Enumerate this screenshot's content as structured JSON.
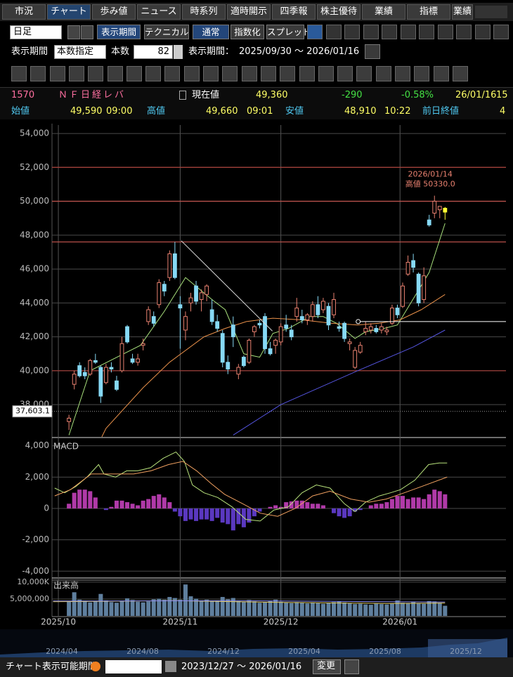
{
  "tabs": [
    "市況",
    "チャート",
    "歩み値",
    "ニュース",
    "時系列",
    "適時開示",
    "四季報",
    "株主優待",
    "業績",
    "指標",
    "業績"
  ],
  "toolbar": {
    "period_select": "日足",
    "buttons": [
      "表示期間",
      "テクニカル",
      "通常",
      "指数化",
      "スプレッド"
    ]
  },
  "range_bar": {
    "label": "表示期間",
    "mode": "本数指定",
    "count_label": "本数",
    "count": "82",
    "period_label": "表示期間：",
    "period": "2025/09/30 ～ 2026/01/16"
  },
  "quote": {
    "code": "1570",
    "name": "ＮＦ日経レバ",
    "current_label": "現在値",
    "current": "49,360",
    "change": "-290",
    "change_pct": "-0.58%",
    "date": "26/01/16",
    "time": "15",
    "open_label": "始値",
    "open": "49,590",
    "open_time": "09:00",
    "high_label": "高値",
    "high": "49,660",
    "high_time": "09:01",
    "low_label": "安値",
    "low": "48,910",
    "low_time": "10:22",
    "prev_label": "前日終値",
    "prev": "4"
  },
  "chart_data": [
    {
      "type": "candlestick",
      "xlim": [
        -3.2,
        82.5
      ],
      "xticks": [
        {
          "value": -2,
          "label": "2025/10"
        },
        {
          "value": 21,
          "label": "2025/11"
        },
        {
          "value": 40,
          "label": "2025/12"
        },
        {
          "value": 62.5,
          "label": "2026/01"
        }
      ],
      "ylim": [
        36100,
        54500
      ],
      "yticks": [
        {
          "value": 38000,
          "label": "38,000"
        },
        {
          "value": 40000,
          "label": "40,000"
        },
        {
          "value": 42000,
          "label": "42,000"
        },
        {
          "value": 44000,
          "label": "44,000"
        },
        {
          "value": 46000,
          "label": "46,000"
        },
        {
          "value": 48000,
          "label": "48,000"
        },
        {
          "value": 50000,
          "label": "50,000"
        },
        {
          "value": 52000,
          "label": "52,000"
        },
        {
          "value": 54000,
          "label": "54,000"
        }
      ],
      "grid": true,
      "open": [
        37000,
        39200,
        40300,
        39900,
        39800,
        40600,
        40200,
        39300,
        40200,
        39400,
        40000,
        42600,
        40700,
        40500,
        41500,
        42900,
        43200,
        43900,
        45100,
        45500,
        46900,
        43900,
        42400,
        44000,
        45000,
        44200,
        44500,
        43600,
        42900,
        42200,
        40500,
        42700,
        39800,
        40800,
        40500,
        42300,
        42800,
        43200,
        41300,
        41500,
        41700,
        42700,
        42400,
        43200,
        43200,
        43000,
        43200,
        43900,
        43600,
        43800,
        43300,
        42600,
        42800,
        41600,
        40200,
        41100,
        42300,
        42400,
        42500,
        42400,
        42300,
        42800,
        43700,
        43800,
        45700,
        46500,
        45700,
        44200,
        48900,
        49300,
        49500,
        49590
      ],
      "high": [
        37400,
        40000,
        40500,
        40200,
        40700,
        41000,
        40300,
        40400,
        40500,
        39700,
        42000,
        42700,
        41000,
        41000,
        41900,
        43800,
        43500,
        45400,
        45300,
        47100,
        47600,
        44400,
        43500,
        44600,
        45300,
        44800,
        45100,
        44200,
        43300,
        42400,
        40900,
        43200,
        40400,
        40900,
        41900,
        42700,
        43000,
        43400,
        41700,
        41900,
        42800,
        43300,
        42700,
        44300,
        43600,
        43400,
        44100,
        44400,
        44300,
        44000,
        44600,
        42900,
        42900,
        41900,
        41400,
        41700,
        42900,
        42800,
        42700,
        42800,
        42600,
        43900,
        43900,
        45200,
        46800,
        46900,
        45800,
        46100,
        49200,
        50330,
        49700,
        49660
      ],
      "low": [
        36500,
        38900,
        39600,
        39500,
        39700,
        40400,
        38100,
        39200,
        39900,
        38800,
        39900,
        41600,
        40400,
        40300,
        41200,
        42700,
        42600,
        43700,
        44400,
        45300,
        45400,
        41300,
        41800,
        43500,
        43900,
        43500,
        44100,
        42700,
        42300,
        40200,
        39800,
        41400,
        39500,
        40200,
        40400,
        42000,
        42500,
        41000,
        40900,
        41000,
        41500,
        42300,
        41800,
        42900,
        42800,
        42700,
        42900,
        43100,
        43400,
        42400,
        43100,
        42300,
        41700,
        41200,
        40100,
        41000,
        42100,
        42200,
        42200,
        42200,
        42100,
        42700,
        43100,
        43700,
        45600,
        45800,
        43800,
        44000,
        48500,
        49000,
        49000,
        48910
      ],
      "close": [
        37200,
        39800,
        39700,
        39700,
        40600,
        40500,
        38500,
        40200,
        40100,
        38900,
        41600,
        41700,
        40500,
        40700,
        41600,
        43600,
        42800,
        45200,
        44700,
        46900,
        45500,
        43700,
        43200,
        44300,
        44100,
        44600,
        45000,
        42900,
        42500,
        40500,
        40100,
        42000,
        40200,
        40300,
        41800,
        42600,
        42700,
        41300,
        41000,
        41800,
        42600,
        42500,
        42000,
        43700,
        43000,
        43300,
        43900,
        43300,
        44100,
        42700,
        44200,
        42500,
        41900,
        41700,
        41200,
        41500,
        42500,
        42600,
        42300,
        42600,
        42400,
        43700,
        43300,
        45000,
        46400,
        46100,
        44000,
        45600,
        48600,
        50000,
        49700,
        49360
      ],
      "up_color": "#e8806f",
      "down_color": "#86d9f5",
      "current_color": "#ffff33",
      "lines": [
        {
          "color": "#a8e07c",
          "x": [
            0,
            4,
            13.5,
            18,
            22,
            27,
            29.5,
            33,
            36,
            38.5,
            41.5,
            45.5,
            48,
            50.5,
            54,
            56,
            59.5,
            62,
            65.5,
            68,
            71
          ],
          "values": [
            36200,
            40000,
            41500,
            43500,
            45500,
            44200,
            43600,
            41000,
            40800,
            42200,
            42500,
            43200,
            43200,
            42800,
            41900,
            42300,
            42500,
            42700,
            44500,
            45800,
            48700
          ]
        },
        {
          "color": "#e8904a",
          "x": [
            6.2,
            7,
            14,
            19,
            25.5,
            29.5,
            33.5,
            38.5,
            44,
            49.5,
            54.5,
            58.5,
            62.5,
            66.5,
            71
          ],
          "values": [
            36100,
            36600,
            39000,
            40500,
            42000,
            42500,
            42900,
            43100,
            43000,
            42800,
            42700,
            42800,
            43000,
            43600,
            44500
          ]
        },
        {
          "color": "#5555e0",
          "x": [
            31,
            40,
            54.5,
            65,
            71
          ],
          "values": [
            36200,
            38000,
            40000,
            41400,
            42400
          ]
        }
      ],
      "reference_lines": [
        {
          "value": 52000,
          "color": "#a0403a"
        },
        {
          "value": 50000,
          "color": "#b8504a"
        },
        {
          "value": 47600,
          "color": "#b8504a"
        },
        {
          "value": 40000,
          "color": "#a0403a"
        }
      ],
      "trendlines": [
        {
          "color": "#dddddd",
          "x": [
            21.2,
            38.4
          ],
          "values": [
            47670,
            42340
          ]
        },
        {
          "color": "#ffffff",
          "x": [
            54.6,
            82.5
          ],
          "values": [
            42900,
            42900
          ]
        }
      ],
      "price_line": {
        "value": 37603.1,
        "label": "37,603.1"
      },
      "annotation": {
        "date": "2026/01/14",
        "text": "高値 50330.0",
        "color": "#e8806f"
      }
    },
    {
      "type": "macd",
      "title": "MACD",
      "ylim": [
        -4300,
        4300
      ],
      "yticks": [
        {
          "value": 4000,
          "label": "4,000"
        },
        {
          "value": 2000,
          "label": "2,000"
        },
        0,
        {
          "value": -2000,
          "label": "-2,000"
        },
        {
          "value": -4000,
          "label": "-4,000"
        }
      ],
      "grid": true,
      "histogram": [
        300,
        1000,
        1200,
        1200,
        1100,
        700,
        0,
        -100,
        100,
        500,
        500,
        400,
        300,
        200,
        500,
        600,
        800,
        900,
        700,
        400,
        -200,
        -500,
        -800,
        -700,
        -800,
        -700,
        -700,
        -800,
        -600,
        -900,
        -1000,
        -1400,
        -1000,
        -1200,
        -900,
        -500,
        -200,
        0,
        100,
        200,
        100,
        400,
        450,
        500,
        500,
        400,
        300,
        300,
        200,
        0,
        -300,
        -500,
        -600,
        -500,
        -200,
        -100,
        0,
        200,
        300,
        300,
        400,
        600,
        800,
        800,
        600,
        700,
        700,
        600,
        900,
        1200,
        1100,
        900
      ],
      "pos_color": "#b03aa8",
      "neg_color": "#5a38c0",
      "series": [
        {
          "color": "#b8e27c",
          "x": [
            -2.7,
            -0.8,
            1.3,
            3.4,
            5.6,
            6.6,
            8.8,
            10.9,
            13,
            15.4,
            17.8,
            20.2,
            21.8,
            23.3,
            25.5,
            28.1,
            30.8,
            33.4,
            36.1,
            38.7,
            41.4,
            44,
            46.7,
            49.3,
            52,
            54,
            56,
            58.6,
            60.7,
            62.6,
            65.3,
            67.9,
            69.9,
            71.4
          ],
          "values": [
            1300,
            1000,
            1400,
            2000,
            2800,
            2200,
            2000,
            2400,
            2400,
            2600,
            3200,
            3600,
            3000,
            1500,
            1000,
            700,
            100,
            -700,
            -800,
            -100,
            100,
            1000,
            1500,
            1300,
            300,
            -200,
            400,
            800,
            1000,
            1200,
            1800,
            2800,
            2900,
            2900
          ]
        },
        {
          "color": "#f0a060",
          "x": [
            -2.7,
            0.3,
            4.2,
            8.2,
            12.2,
            15.5,
            18.8,
            21.5,
            24.1,
            26.8,
            29.4,
            32.8,
            36.1,
            39.4,
            42.7,
            46,
            49.3,
            53.2,
            56.6,
            59.9,
            63.3,
            66.6,
            71.4
          ],
          "values": [
            800,
            1200,
            2200,
            2200,
            2200,
            2400,
            2800,
            3000,
            2400,
            1600,
            900,
            300,
            -300,
            -500,
            0,
            800,
            1100,
            600,
            400,
            600,
            1000,
            1400,
            2000
          ]
        }
      ]
    },
    {
      "type": "bar",
      "title": "出来高",
      "ylim": [
        0,
        10600000
      ],
      "yticks": [
        {
          "value": 10000000,
          "label": "10,000K"
        },
        {
          "value": 5000000,
          "label": "5,000,000"
        }
      ],
      "grid": true,
      "color": "#5f7f9e",
      "values": [
        4200000,
        7000000,
        4800000,
        4500000,
        4000000,
        4300000,
        6500000,
        4600000,
        4100000,
        3900000,
        4400000,
        5200000,
        4700000,
        4200000,
        4000000,
        4300000,
        4900000,
        5100000,
        4800000,
        5600000,
        5300000,
        4800000,
        9300000,
        5800000,
        5100000,
        4600000,
        4800000,
        4300000,
        4500000,
        5600000,
        4900000,
        5300000,
        4400000,
        4200000,
        4700000,
        4300000,
        3900000,
        4100000,
        4400000,
        4800000,
        4200000,
        4000000,
        3800000,
        4100000,
        3900000,
        3700000,
        4000000,
        3800000,
        3600000,
        3900000,
        4100000,
        4300000,
        4000000,
        3700000,
        3500000,
        3600000,
        3400000,
        3300000,
        3600000,
        3500000,
        3400000,
        3600000,
        4600000,
        3900000,
        3800000,
        4100000,
        3700000,
        3600000,
        4400000,
        4300000,
        3900000,
        3000000
      ],
      "series": [
        {
          "color": "#e8d060",
          "x": [
            -3,
            20,
            40,
            60,
            71
          ],
          "values": [
            4200000,
            4500000,
            4000000,
            3700000,
            3800000
          ]
        },
        {
          "color": "#8a8af0",
          "x": [
            -3,
            30,
            71
          ],
          "values": [
            4400000,
            4500000,
            4100000
          ]
        }
      ]
    }
  ],
  "navigator": {
    "labels": [
      "2024/04",
      "2024/08",
      "2024/12",
      "2025/04",
      "2025/08",
      "2025/12"
    ]
  },
  "footer": {
    "label": "チャート表示可能期間",
    "period": "2023/12/27 ～ 2026/01/16",
    "button": "変更"
  }
}
